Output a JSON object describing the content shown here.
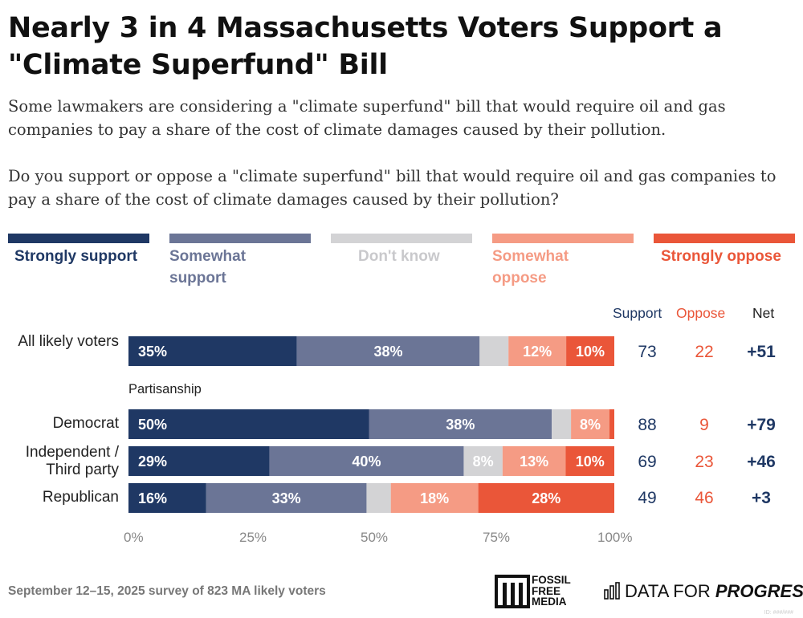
{
  "title": "Nearly 3 in 4 Massachusetts Voters Support a \"Climate Superfund\" Bill",
  "subtitle_1": "Some lawmakers are considering a \"climate superfund\" bill that would require oil and gas companies to pay a share of the cost of climate damages caused by their pollution.",
  "subtitle_2": "Do you support or oppose a \"climate superfund\" bill that would require oil and gas companies to pay a share of the cost of climate damages caused by their pollution?",
  "colors": {
    "strongly_support": "#1f3864",
    "somewhat_support": "#6b7596",
    "dont_know": "#d3d3d5",
    "somewhat_oppose": "#f59b84",
    "strongly_oppose": "#ea5639"
  },
  "legend": [
    "Strongly support",
    "Somewhat support",
    "Don't know",
    "Somewhat oppose",
    "Strongly oppose"
  ],
  "columns": {
    "support": "Support",
    "oppose": "Oppose",
    "net": "Net"
  },
  "group_label": "Partisanship",
  "chart_data": {
    "type": "bar",
    "orientation": "horizontal",
    "stacked": true,
    "title": "Nearly 3 in 4 Massachusetts Voters Support a \"Climate Superfund\" Bill",
    "categories": [
      "All likely voters",
      "Democrat",
      "Independent / Third party",
      "Republican"
    ],
    "series": [
      {
        "name": "Strongly support",
        "values": [
          35,
          50,
          29,
          16
        ]
      },
      {
        "name": "Somewhat support",
        "values": [
          38,
          38,
          40,
          33
        ]
      },
      {
        "name": "Don't know",
        "values": [
          6,
          4,
          8,
          5
        ]
      },
      {
        "name": "Somewhat oppose",
        "values": [
          12,
          8,
          13,
          18
        ]
      },
      {
        "name": "Strongly oppose",
        "values": [
          10,
          1,
          10,
          28
        ]
      }
    ],
    "shown_labels": [
      [
        "35%",
        "38%",
        "",
        "12%",
        "10%"
      ],
      [
        "50%",
        "38%",
        "",
        "8%",
        ""
      ],
      [
        "29%",
        "40%",
        "8%",
        "13%",
        "10%"
      ],
      [
        "16%",
        "33%",
        "",
        "18%",
        "28%"
      ]
    ],
    "support": [
      73,
      88,
      69,
      49
    ],
    "oppose": [
      22,
      9,
      23,
      46
    ],
    "net": [
      "+51",
      "+79",
      "+46",
      "+3"
    ],
    "xlim": [
      0,
      100
    ],
    "xticks": [
      "0%",
      "25%",
      "50%",
      "75%",
      "100%"
    ],
    "xlabel": "",
    "ylabel": ""
  },
  "rows": [
    {
      "label": "All likely voters"
    },
    {
      "label": "Democrat"
    },
    {
      "label": "Independent / Third party"
    },
    {
      "label": "Republican"
    }
  ],
  "footer": "September 12–15, 2025 survey of 823 MA likely voters",
  "logo_ffm": {
    "line1": "FOSSIL",
    "line2": "FREE",
    "line3": "MEDIA"
  },
  "logo_dfp": {
    "part1": "DATA FOR ",
    "part2": "PROGRESS"
  },
  "watermark": "ID: ###/### "
}
